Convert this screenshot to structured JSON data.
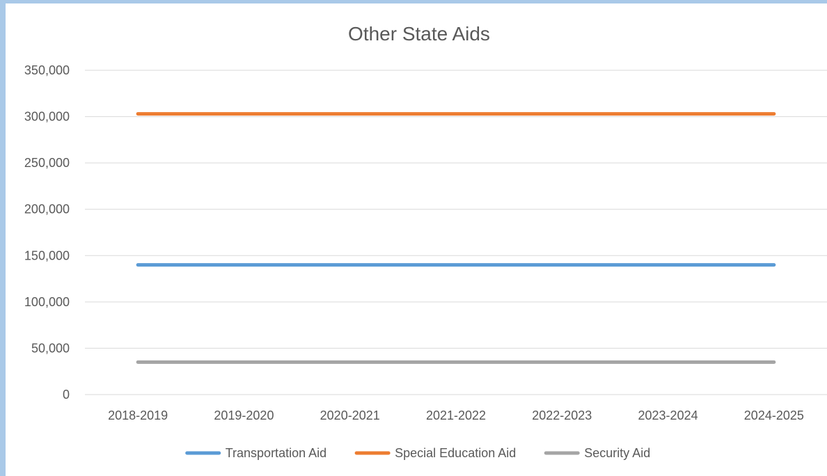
{
  "chart_data": {
    "type": "line",
    "title": "Other State Aids",
    "xlabel": "",
    "ylabel": "",
    "categories": [
      "2018-2019",
      "2019-2020",
      "2020-2021",
      "2021-2022",
      "2022-2023",
      "2023-2024",
      "2024-2025"
    ],
    "y_ticks": [
      "0",
      "50,000",
      "100,000",
      "150,000",
      "200,000",
      "250,000",
      "300,000",
      "350,000"
    ],
    "ylim": [
      0,
      350000
    ],
    "grid": true,
    "legend_position": "bottom",
    "series": [
      {
        "name": "Transportation Aid",
        "color": "#5b9bd5",
        "values": [
          140000,
          140000,
          140000,
          140000,
          140000,
          140000,
          140000
        ]
      },
      {
        "name": "Special Education Aid",
        "color": "#ed7d31",
        "values": [
          303000,
          303000,
          303000,
          303000,
          303000,
          303000,
          303000
        ]
      },
      {
        "name": "Security Aid",
        "color": "#a5a5a5",
        "values": [
          35000,
          35000,
          35000,
          35000,
          35000,
          35000,
          35000
        ]
      }
    ]
  }
}
